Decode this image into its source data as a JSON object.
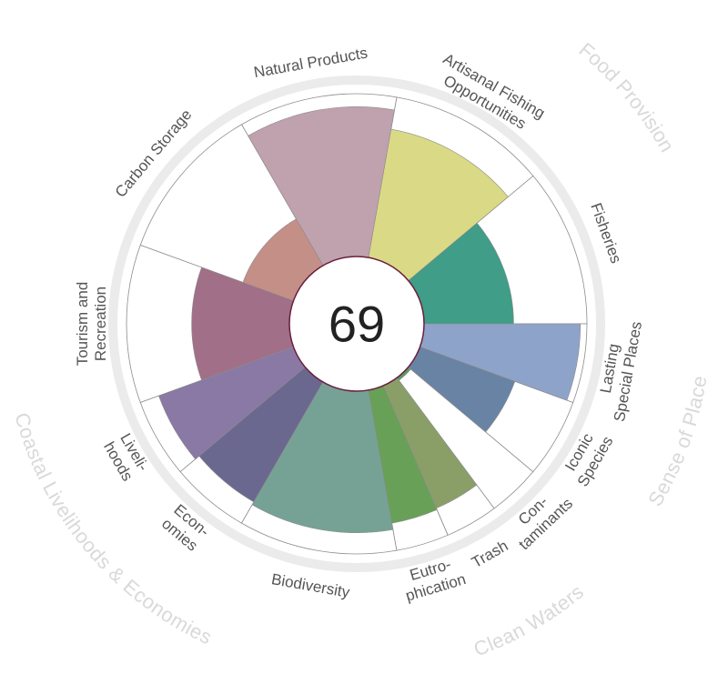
{
  "chart_data": {
    "type": "flower",
    "score": "69",
    "max_value": 100,
    "petals": [
      {
        "label_lines": [
          "Fisheries"
        ],
        "value": 55,
        "color": "#3f9d88",
        "start": 0,
        "end": 40
      },
      {
        "label_lines": [
          "Artisanal Fishing",
          "Opportunities"
        ],
        "value": 80,
        "color": "#dad986",
        "start": 40,
        "end": 80
      },
      {
        "label_lines": [
          "Natural Products"
        ],
        "value": 92,
        "color": "#c0a1ae",
        "start": 80,
        "end": 120
      },
      {
        "label_lines": [
          "Carbon Storage"
        ],
        "value": 33,
        "color": "#c48f87",
        "start": 120,
        "end": 160
      },
      {
        "label_lines": [
          "Tourism and",
          "Recreation"
        ],
        "value": 60,
        "color": "#a16f88",
        "start": 160,
        "end": 200
      },
      {
        "label_lines": [
          "Liveli-",
          "hoods"
        ],
        "value": 88,
        "color": "#8a79a4",
        "start": 200,
        "end": 220
      },
      {
        "label_lines": [
          "Econ-",
          "omies"
        ],
        "value": 85,
        "color": "#6b6890",
        "start": 220,
        "end": 240
      },
      {
        "label_lines": [
          "Biodiversity"
        ],
        "value": 87,
        "color": "#76a296",
        "start": 240,
        "end": 280
      },
      {
        "label_lines": [
          "Eutro-",
          "phication"
        ],
        "value": 83,
        "color": "#68a058",
        "start": 280,
        "end": 293.33
      },
      {
        "label_lines": [
          "Trash"
        ],
        "value": 82,
        "color": "#8a9f68",
        "start": 293.33,
        "end": 306.67
      },
      {
        "label_lines": [
          "Con-",
          "taminants"
        ],
        "value": 2,
        "color": "#5a9a60",
        "start": 306.67,
        "end": 320
      },
      {
        "label_lines": [
          "Iconic",
          "Species"
        ],
        "value": 62,
        "color": "#6983a5",
        "start": 320,
        "end": 340
      },
      {
        "label_lines": [
          "Lasting",
          "Special Places"
        ],
        "value": 96,
        "color": "#8ea3c9",
        "start": 340,
        "end": 360
      }
    ],
    "groups": [
      {
        "label": "Food Provision",
        "start": 0,
        "end": 80
      },
      {
        "label": "Coastal Livelihoods & Economies",
        "start": 200,
        "end": 240
      },
      {
        "label": "Clean Waters",
        "start": 280,
        "end": 320
      },
      {
        "label": "Sense of Place",
        "start": 320,
        "end": 360
      }
    ],
    "colors": {
      "ring": "#ebebeb",
      "petal_outline": "#8c8c8c",
      "center_stroke": "#6b1f3d",
      "label": "#555555",
      "group_label": "#d9d9d9"
    }
  }
}
